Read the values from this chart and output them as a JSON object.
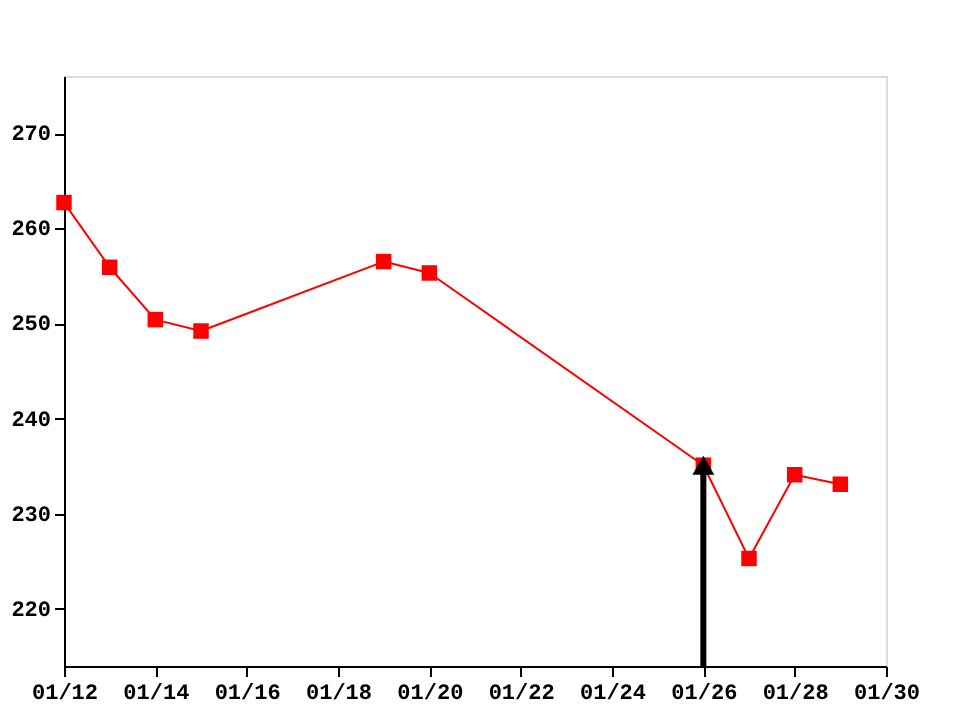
{
  "chart_data": {
    "type": "line",
    "x": [
      "--01-12",
      "--01-13",
      "--01-14",
      "--01-15",
      "--01-19",
      "--01-20",
      "--01-26",
      "--01-27",
      "--01-28",
      "--01-29"
    ],
    "series": [
      {
        "color": "#ff0000",
        "values": [
          262.7,
          255.9,
          250.4,
          249.2,
          256.5,
          255.3,
          235.1,
          225.3,
          234.1,
          233.1
        ]
      }
    ],
    "xlim": [
      "--01-12",
      "--01-30"
    ],
    "xticks": [
      {
        "value": "--01-12",
        "label": "01/12"
      },
      {
        "value": "--01-14",
        "label": "01/14"
      },
      {
        "value": "--01-16",
        "label": "01/16"
      },
      {
        "value": "--01-18",
        "label": "01/18"
      },
      {
        "value": "--01-20",
        "label": "01/20"
      },
      {
        "value": "--01-22",
        "label": "01/22"
      },
      {
        "value": "--01-24",
        "label": "01/24"
      },
      {
        "value": "--01-26",
        "label": "01/26"
      },
      {
        "value": "--01-28",
        "label": "01/28"
      },
      {
        "value": "--01-30",
        "label": "01/30"
      }
    ],
    "ylim": [
      214,
      276
    ],
    "yticks": [
      220,
      230,
      240,
      250,
      260,
      270
    ],
    "ref_lines": [
      {
        "axis": "x",
        "value": "--01-26"
      }
    ],
    "marker": "square",
    "line_style": "solid",
    "grid": false
  }
}
